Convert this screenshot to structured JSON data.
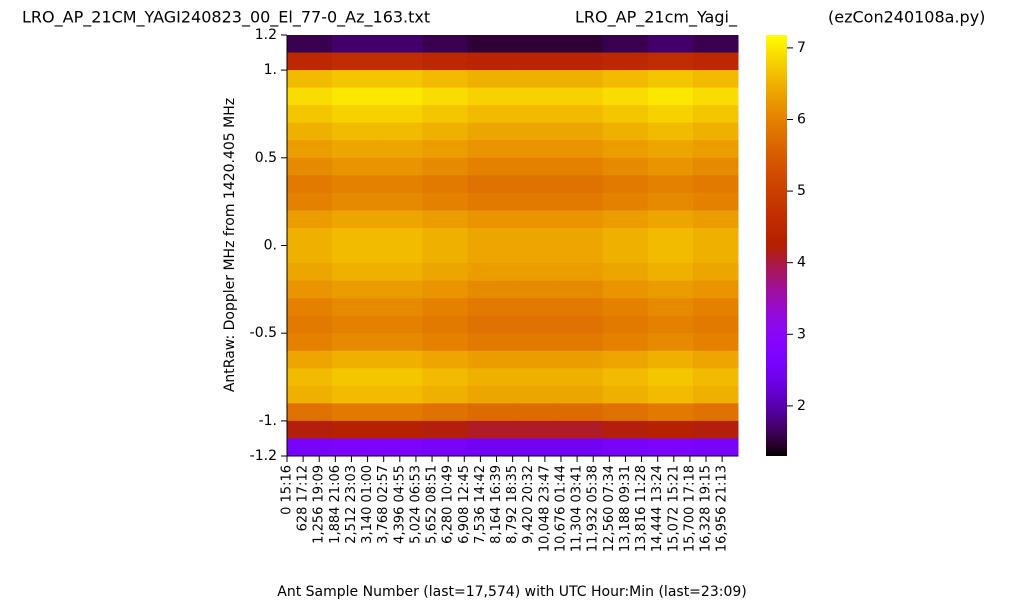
{
  "chart_data": {
    "type": "heatmap",
    "title": "LRO_AP_21CM_YAGI240823_00_El_77-0_Az_163.txt",
    "subtitle": "LRO_AP_21cm_Yagi_",
    "annotation": "(ezCon240108a.py)",
    "xlabel": "Ant Sample Number (last=17,574) with UTC Hour:Min (last=23:09)",
    "ylabel": "AntRaw:  Doppler MHz from 1420.405 MHz",
    "colormap": "gnuplot",
    "xlim": [
      0,
      17574
    ],
    "ylim": [
      -1.2,
      1.2
    ],
    "clim": [
      1.3,
      7.18
    ],
    "cticks": [
      2,
      3,
      4,
      5,
      6,
      7
    ],
    "yticks": [
      1.2,
      {
        "value": 1,
        "label": "1."
      },
      0.5,
      {
        "value": 0,
        "label": "0."
      },
      -0.5,
      {
        "value": -1,
        "label": "-1."
      },
      -1.2
    ],
    "xticks": [
      {
        "value": 0,
        "label": "0 15:16"
      },
      {
        "value": 628,
        "label": "628 17:12"
      },
      {
        "value": 1256,
        "label": "1,256 19:09"
      },
      {
        "value": 1884,
        "label": "1,884 21:06"
      },
      {
        "value": 2512,
        "label": "2,512 23:03"
      },
      {
        "value": 3140,
        "label": "3,140 01:00"
      },
      {
        "value": 3768,
        "label": "3,768 02:57"
      },
      {
        "value": 4396,
        "label": "4,396 04:55"
      },
      {
        "value": 5024,
        "label": "5,024 06:53"
      },
      {
        "value": 5652,
        "label": "5,652 08:51"
      },
      {
        "value": 6280,
        "label": "6,280 10:49"
      },
      {
        "value": 6908,
        "label": "6,908 12:45"
      },
      {
        "value": 7536,
        "label": "7,536 14:42"
      },
      {
        "value": 8164,
        "label": "8,164 16:39"
      },
      {
        "value": 8792,
        "label": "8,792 18:35"
      },
      {
        "value": 9420,
        "label": "9,420 20:32"
      },
      {
        "value": 10048,
        "label": "10,048 23:47"
      },
      {
        "value": 10676,
        "label": "10,676 01:44"
      },
      {
        "value": 11304,
        "label": "11,304 03:41"
      },
      {
        "value": 11932,
        "label": "11,932 05:38"
      },
      {
        "value": 12560,
        "label": "12,560 07:34"
      },
      {
        "value": 13188,
        "label": "13,188 09:31"
      },
      {
        "value": 13816,
        "label": "13,816 11:28"
      },
      {
        "value": 14444,
        "label": "14,444 13:24"
      },
      {
        "value": 15072,
        "label": "15,072 15:21"
      },
      {
        "value": 15700,
        "label": "15,700 17:18"
      },
      {
        "value": 16328,
        "label": "16,328 19:15"
      },
      {
        "value": 16956,
        "label": "16,956 21:13"
      }
    ],
    "z": [
      [
        1.6,
        1.7,
        1.7,
        1.6,
        1.5,
        1.5,
        1.5,
        1.6,
        1.7,
        1.6
      ],
      [
        4.5,
        4.6,
        4.6,
        4.5,
        4.4,
        4.4,
        4.4,
        4.5,
        4.6,
        4.5
      ],
      [
        6.6,
        6.7,
        6.7,
        6.6,
        6.5,
        6.5,
        6.5,
        6.6,
        6.7,
        6.6
      ],
      [
        6.9,
        7.0,
        7.0,
        6.9,
        6.8,
        6.8,
        6.8,
        6.9,
        7.0,
        6.9
      ],
      [
        6.7,
        6.8,
        6.8,
        6.7,
        6.6,
        6.6,
        6.6,
        6.7,
        6.8,
        6.7
      ],
      [
        6.5,
        6.6,
        6.6,
        6.5,
        6.4,
        6.4,
        6.4,
        6.5,
        6.6,
        6.5
      ],
      [
        6.3,
        6.4,
        6.4,
        6.3,
        6.2,
        6.2,
        6.2,
        6.3,
        6.4,
        6.3
      ],
      [
        6.1,
        6.2,
        6.2,
        6.1,
        6.0,
        6.0,
        6.0,
        6.1,
        6.2,
        6.1
      ],
      [
        5.9,
        6.0,
        6.0,
        5.9,
        5.8,
        5.8,
        5.8,
        5.9,
        6.0,
        5.9
      ],
      [
        6.0,
        6.1,
        6.1,
        6.0,
        5.9,
        5.9,
        5.9,
        6.0,
        6.1,
        6.0
      ],
      [
        6.3,
        6.4,
        6.4,
        6.3,
        6.2,
        6.2,
        6.2,
        6.3,
        6.4,
        6.3
      ],
      [
        6.5,
        6.6,
        6.6,
        6.5,
        6.4,
        6.4,
        6.4,
        6.5,
        6.6,
        6.5
      ],
      [
        6.5,
        6.6,
        6.6,
        6.5,
        6.4,
        6.4,
        6.4,
        6.5,
        6.6,
        6.5
      ],
      [
        6.4,
        6.5,
        6.5,
        6.4,
        6.3,
        6.3,
        6.3,
        6.4,
        6.5,
        6.4
      ],
      [
        6.2,
        6.3,
        6.3,
        6.2,
        6.1,
        6.1,
        6.1,
        6.2,
        6.3,
        6.2
      ],
      [
        6.0,
        6.1,
        6.1,
        6.0,
        5.9,
        5.9,
        5.9,
        6.0,
        6.1,
        6.0
      ],
      [
        5.9,
        6.0,
        6.0,
        5.9,
        5.8,
        5.8,
        5.8,
        5.9,
        6.0,
        5.9
      ],
      [
        6.0,
        6.1,
        6.1,
        6.0,
        5.9,
        5.9,
        5.9,
        6.0,
        6.1,
        6.0
      ],
      [
        6.4,
        6.5,
        6.5,
        6.4,
        6.3,
        6.3,
        6.3,
        6.4,
        6.5,
        6.4
      ],
      [
        6.6,
        6.7,
        6.7,
        6.6,
        6.5,
        6.5,
        6.5,
        6.6,
        6.7,
        6.6
      ],
      [
        6.5,
        6.6,
        6.6,
        6.5,
        6.4,
        6.4,
        6.4,
        6.5,
        6.6,
        6.5
      ],
      [
        5.8,
        5.9,
        5.9,
        5.8,
        5.7,
        5.7,
        5.7,
        5.8,
        5.9,
        5.8
      ],
      [
        4.2,
        4.3,
        4.3,
        4.2,
        4.1,
        4.1,
        4.1,
        4.2,
        4.3,
        4.2
      ],
      [
        2.6,
        2.7,
        2.7,
        2.6,
        2.5,
        2.5,
        2.5,
        2.6,
        2.7,
        2.6
      ]
    ]
  }
}
